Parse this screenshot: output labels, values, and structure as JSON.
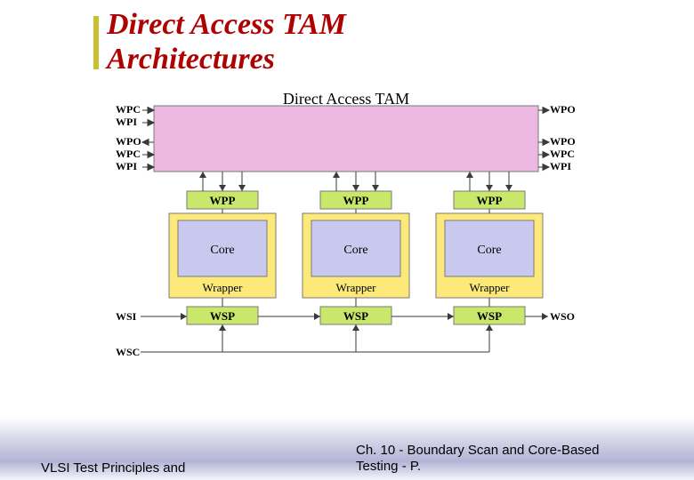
{
  "title_line1": "Direct Access TAM",
  "title_line2": "Architectures",
  "tam": {
    "label": "Direct Access TAM",
    "fontsize": 18,
    "fill": "#eab8e0",
    "stroke": "#7a7a7a"
  },
  "wpp": {
    "label": "WPP",
    "fill": "#c9e76b",
    "stroke": "#7a7a7a",
    "label_fontsize": 13,
    "label_weight": "bold"
  },
  "wrapper": {
    "label": "Wrapper",
    "fill": "#fce97a",
    "stroke": "#7a7a7a",
    "label_fontsize": 13
  },
  "core": {
    "label": "Core",
    "fill": "#c9c9ef",
    "stroke": "#7a7a7a",
    "label_fontsize": 14
  },
  "wsp": {
    "label": "WSP",
    "fill": "#c9e76b",
    "stroke": "#7a7a7a",
    "label_fontsize": 13,
    "label_weight": "bold"
  },
  "left_labels": {
    "top": [
      "WPC",
      "WPI"
    ],
    "mid": [
      "WPO",
      "WPC",
      "WPI"
    ],
    "bottom": [
      "WSI",
      "WSC"
    ]
  },
  "right_labels": {
    "top": [
      "WPO"
    ],
    "mid": [
      "WPO",
      "WPC",
      "WPI"
    ],
    "bottom": [
      "WSO"
    ]
  },
  "label_fontsize": 12,
  "label_weight": "bold",
  "line_color": "#3a3a3a",
  "footer": {
    "left": "VLSI Test Principles and",
    "right_line1": "Ch. 10 - Boundary Scan and Core-Based",
    "right_line2": "Testing - P."
  },
  "arrow": {
    "w": 7,
    "h": 4
  }
}
